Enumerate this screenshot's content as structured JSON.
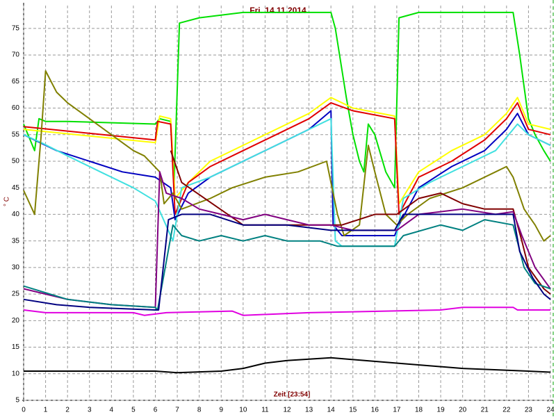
{
  "chart_data": {
    "type": "line",
    "title": "Fri. 14.11.2014",
    "x_label": "Zeit [23:54]",
    "y_label": "° C",
    "xlim": [
      0,
      24
    ],
    "xticks": [
      0,
      1,
      2,
      3,
      4,
      5,
      6,
      7,
      8,
      9,
      10,
      11,
      12,
      13,
      14,
      15,
      16,
      17,
      18,
      19,
      20,
      21,
      22,
      23,
      24
    ],
    "ylim": [
      5,
      79.3
    ],
    "yticks": [
      5,
      10,
      15,
      20,
      25,
      30,
      35,
      40,
      45,
      50,
      55,
      60,
      65,
      70,
      75
    ],
    "grid": true,
    "series": [
      {
        "color": "#00e000",
        "x": [
          0,
          0.5,
          0.7,
          1,
          2,
          6,
          6.2,
          6.7,
          6.85,
          7.1,
          8,
          10,
          14,
          14.2,
          14.7,
          15,
          15.3,
          15.5,
          15.7,
          16,
          16.5,
          16.9,
          17.1,
          18,
          22.3,
          22.6,
          23,
          23.3,
          23.7,
          24
        ],
        "values": [
          57,
          52,
          58,
          57.5,
          57.5,
          57,
          58,
          57.5,
          45,
          76,
          77,
          78,
          78,
          75,
          62,
          55,
          50,
          48,
          57,
          55,
          48,
          45,
          77,
          78,
          78,
          70,
          58,
          55,
          52,
          50
        ]
      },
      {
        "color": "#ffff00",
        "x": [
          0,
          6,
          6.2,
          6.7,
          6.9,
          7.5,
          8.5,
          10,
          11.5,
          13,
          14,
          15,
          16.9,
          17.1,
          18,
          19.5,
          21,
          22,
          22.5,
          23,
          24
        ],
        "values": [
          56,
          53.5,
          58.5,
          58,
          43,
          46,
          50,
          53,
          56,
          59,
          62,
          60,
          58.5,
          42,
          48,
          52,
          55,
          59,
          62,
          57,
          56
        ]
      },
      {
        "color": "#e00000",
        "x": [
          0,
          6,
          6.1,
          6.7,
          6.9,
          7.5,
          8.5,
          10,
          11.5,
          13,
          14,
          15,
          16.9,
          17.1,
          18,
          19.5,
          21,
          22,
          22.5,
          23,
          24
        ],
        "values": [
          56.5,
          54,
          57.5,
          57,
          40,
          46,
          49,
          52,
          55,
          58,
          61,
          59.5,
          58,
          40,
          47,
          50,
          54,
          58,
          61,
          56,
          55
        ]
      },
      {
        "color": "#0000c0",
        "x": [
          0,
          1.5,
          3,
          4.5,
          6,
          6.7,
          6.9,
          7.5,
          8.5,
          10,
          11.5,
          13,
          14,
          14.1,
          14.5,
          16.9,
          17.1,
          18,
          19.5,
          21,
          22,
          22.5,
          23,
          24
        ],
        "values": [
          55,
          52,
          50,
          48,
          47,
          45,
          39,
          44,
          47,
          50,
          53,
          56,
          59.5,
          38,
          36,
          36,
          38,
          45,
          49,
          52,
          56,
          59,
          55,
          53
        ]
      },
      {
        "color": "#40e0e0",
        "x": [
          0,
          0.8,
          2,
          3.5,
          5,
          6,
          6.8,
          7.2,
          8.5,
          10,
          11.5,
          13,
          14,
          14.2,
          14.5,
          16.9,
          17.3,
          18.5,
          20,
          21.5,
          22.5,
          23,
          24
        ],
        "values": [
          55,
          53.5,
          51,
          48,
          45,
          42.5,
          35,
          45,
          47,
          50,
          53,
          56,
          58,
          35,
          34,
          34,
          43,
          46,
          49,
          52,
          57,
          55,
          53
        ]
      },
      {
        "color": "#808000",
        "x": [
          0,
          0.5,
          0.8,
          1,
          1.5,
          2,
          3,
          4,
          5,
          5.5,
          6.2,
          6.4,
          6.8,
          7.2,
          8.5,
          9.5,
          11,
          12.5,
          13.8,
          14.3,
          14.6,
          15.3,
          15.7,
          16,
          16.5,
          17,
          17.5,
          18.5,
          20,
          21.5,
          22,
          22.3,
          22.8,
          23.3,
          23.7,
          24
        ],
        "values": [
          44.5,
          40,
          55,
          67,
          63,
          61,
          58,
          55,
          52,
          51,
          48,
          42,
          44,
          41,
          43,
          45,
          47,
          48,
          50,
          40,
          36,
          38,
          53,
          48,
          40,
          38,
          40,
          43,
          45,
          48,
          49,
          47,
          41,
          38,
          35,
          36
        ]
      },
      {
        "color": "#800000",
        "x": [
          6.7,
          7.2,
          10,
          14,
          14.5,
          16,
          17,
          18,
          19,
          20,
          21,
          22.3,
          22.7,
          23,
          23.7,
          24
        ],
        "values": [
          52,
          46,
          38,
          38,
          38,
          40,
          40,
          43,
          44,
          42,
          41,
          41,
          35,
          30,
          26,
          25
        ]
      },
      {
        "color": "#800080",
        "x": [
          0,
          2,
          4,
          6,
          6.2,
          6.5,
          7.2,
          8,
          9,
          10,
          11,
          12,
          13,
          14,
          15,
          17,
          18,
          20,
          21.5,
          22.3,
          22.7,
          23.3,
          24
        ],
        "values": [
          26,
          24,
          23,
          22.5,
          48,
          44,
          43,
          41,
          40,
          39,
          40,
          39,
          38,
          38,
          37,
          37,
          40,
          41,
          40,
          40.5,
          36,
          30,
          26
        ]
      },
      {
        "color": "#008080",
        "x": [
          0,
          2,
          4,
          6,
          6.1,
          6.8,
          7.2,
          8,
          9,
          10,
          11,
          12,
          13.5,
          14.3,
          16.9,
          17.3,
          19,
          20,
          21,
          22.3,
          22.8,
          23.3,
          24
        ],
        "values": [
          26.5,
          24,
          23,
          22.5,
          22,
          38,
          36,
          35,
          36,
          35,
          36,
          35,
          35,
          34,
          34,
          36,
          38,
          37,
          39,
          38,
          30,
          27,
          26
        ]
      },
      {
        "color": "#000080",
        "x": [
          0,
          1.5,
          3,
          6,
          6.15,
          6.6,
          7.2,
          8.5,
          10,
          12,
          14,
          16.9,
          17.3,
          20,
          22.3,
          22.6,
          23.2,
          23.7,
          24
        ],
        "values": [
          24,
          23,
          22.5,
          22,
          22,
          39,
          40,
          40,
          38,
          38,
          37,
          37,
          40,
          40,
          40,
          33,
          28,
          25,
          24
        ]
      },
      {
        "color": "#e000e0",
        "x": [
          0,
          1,
          5,
          5.5,
          6.5,
          9.5,
          10,
          13,
          19,
          20,
          22.3,
          22.5,
          24
        ],
        "values": [
          22,
          21.5,
          21.5,
          21,
          21.5,
          21.8,
          21,
          21.5,
          22,
          22.5,
          22.5,
          22,
          22
        ]
      },
      {
        "color": "#000000",
        "x": [
          0,
          6,
          7,
          9,
          10,
          11,
          12,
          14,
          17,
          20,
          23,
          24
        ],
        "values": [
          10.5,
          10.5,
          10.2,
          10.5,
          11,
          12,
          12.5,
          13,
          12,
          11,
          10.5,
          10.3
        ]
      }
    ]
  }
}
